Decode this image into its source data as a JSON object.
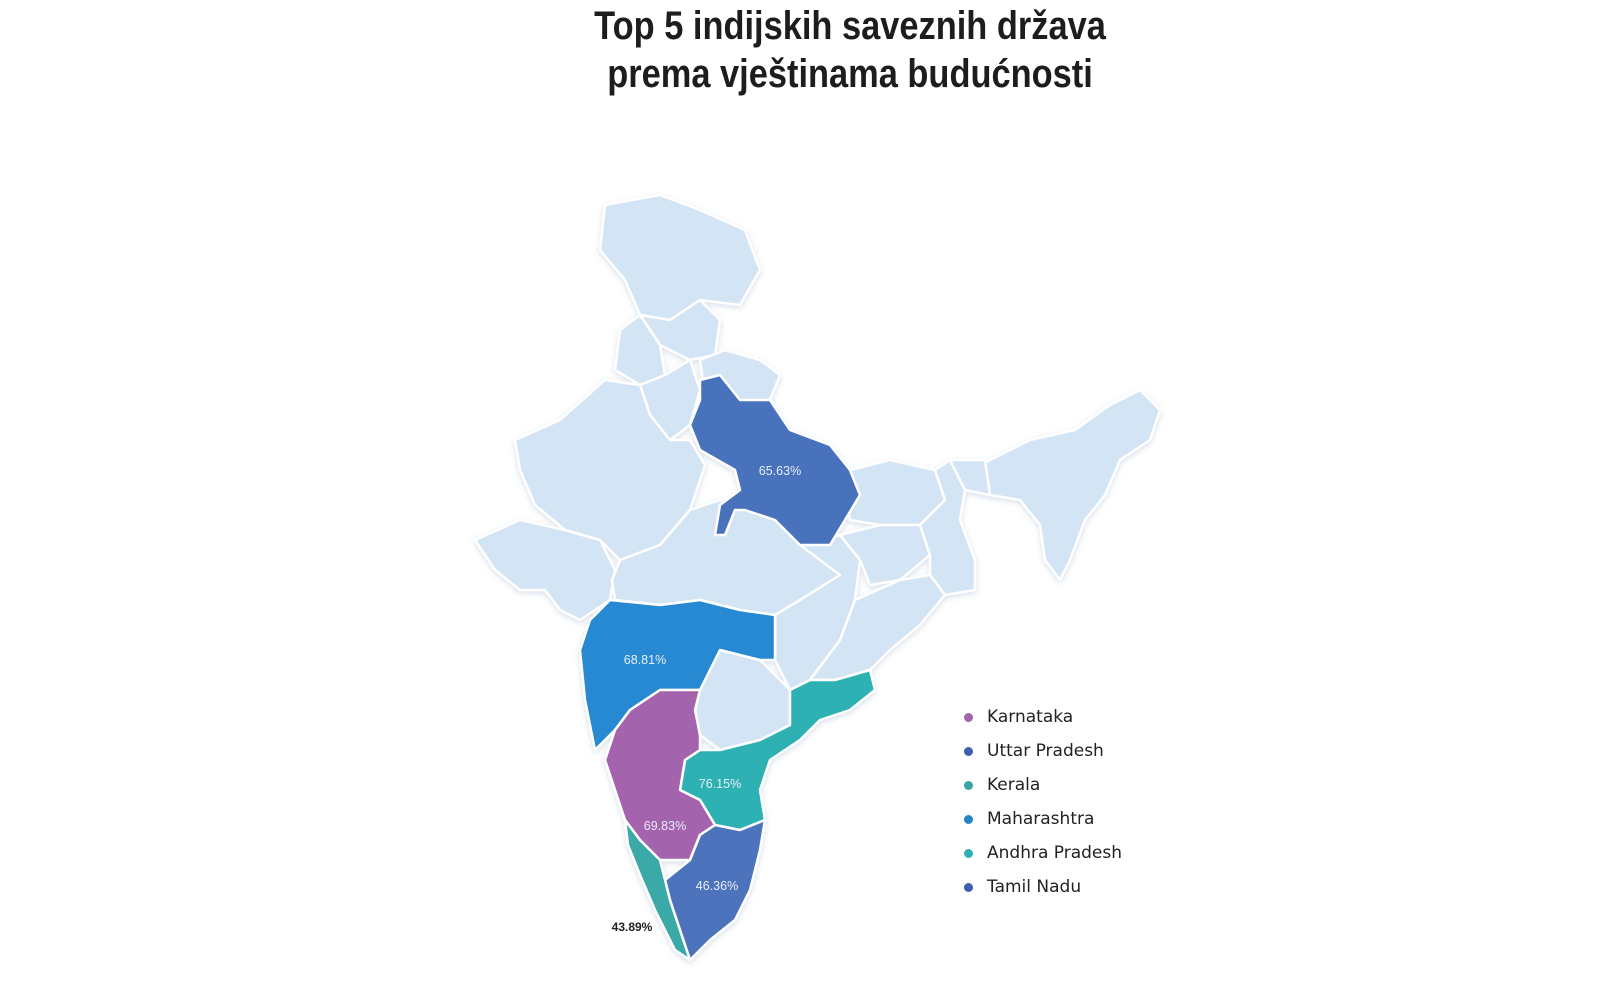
{
  "title": {
    "line1": "Top 5 indijskih saveznih država",
    "line2": "prema vještinama budućnosti"
  },
  "colors": {
    "base_state": "#d3e4f5",
    "Karnataka": "#a363ad",
    "Uttar Pradesh": "#4a72bd",
    "Kerala": "#3aa9a8",
    "Maharashtra": "#2589d2",
    "Andhra Pradesh": "#2fb1b3",
    "Tamil Nadu": "#4d73bd"
  },
  "regions": [
    {
      "name": "Uttar Pradesh",
      "value": "65.63%"
    },
    {
      "name": "Maharashtra",
      "value": "68.81%"
    },
    {
      "name": "Andhra Pradesh",
      "value": "76.15%"
    },
    {
      "name": "Karnataka",
      "value": "69.83%"
    },
    {
      "name": "Tamil Nadu",
      "value": "46.36%"
    },
    {
      "name": "Kerala",
      "value": "43.89%"
    }
  ],
  "legend": [
    {
      "label": "Karnataka",
      "color": "#a363ad"
    },
    {
      "label": "Uttar Pradesh",
      "color": "#3e5fae"
    },
    {
      "label": "Kerala",
      "color": "#3aa5a4"
    },
    {
      "label": "Maharashtra",
      "color": "#2683c6"
    },
    {
      "label": "Andhra Pradesh",
      "color": "#2fb1b3"
    },
    {
      "label": "Tamil Nadu",
      "color": "#3e5fae"
    }
  ]
}
